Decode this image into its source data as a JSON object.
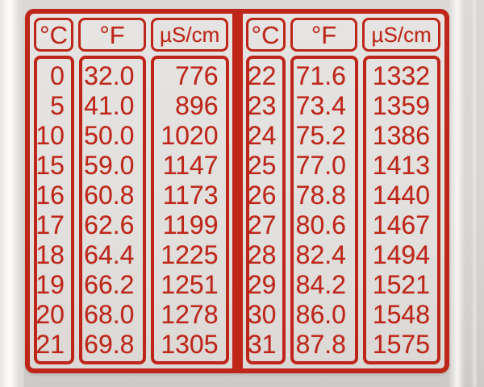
{
  "colors": {
    "red": "#be2619",
    "label_bg": "#e3e1de",
    "photo_bg": "#d8d5d3"
  },
  "chart_data": [
    {
      "type": "table",
      "columns": [
        "°C",
        "°F",
        "µS/cm"
      ],
      "rows": [
        [
          "0",
          "32.0",
          "776"
        ],
        [
          "5",
          "41.0",
          "896"
        ],
        [
          "10",
          "50.0",
          "1020"
        ],
        [
          "15",
          "59.0",
          "1147"
        ],
        [
          "16",
          "60.8",
          "1173"
        ],
        [
          "17",
          "62.6",
          "1199"
        ],
        [
          "18",
          "64.4",
          "1225"
        ],
        [
          "19",
          "66.2",
          "1251"
        ],
        [
          "20",
          "68.0",
          "1278"
        ],
        [
          "21",
          "69.8",
          "1305"
        ]
      ]
    },
    {
      "type": "table",
      "columns": [
        "°C",
        "°F",
        "µS/cm"
      ],
      "rows": [
        [
          "22",
          "71.6",
          "1332"
        ],
        [
          "23",
          "73.4",
          "1359"
        ],
        [
          "24",
          "75.2",
          "1386"
        ],
        [
          "25",
          "77.0",
          "1413"
        ],
        [
          "26",
          "78.8",
          "1440"
        ],
        [
          "27",
          "80.6",
          "1467"
        ],
        [
          "28",
          "82.4",
          "1494"
        ],
        [
          "29",
          "84.2",
          "1521"
        ],
        [
          "30",
          "86.0",
          "1548"
        ],
        [
          "31",
          "87.8",
          "1575"
        ]
      ]
    }
  ]
}
